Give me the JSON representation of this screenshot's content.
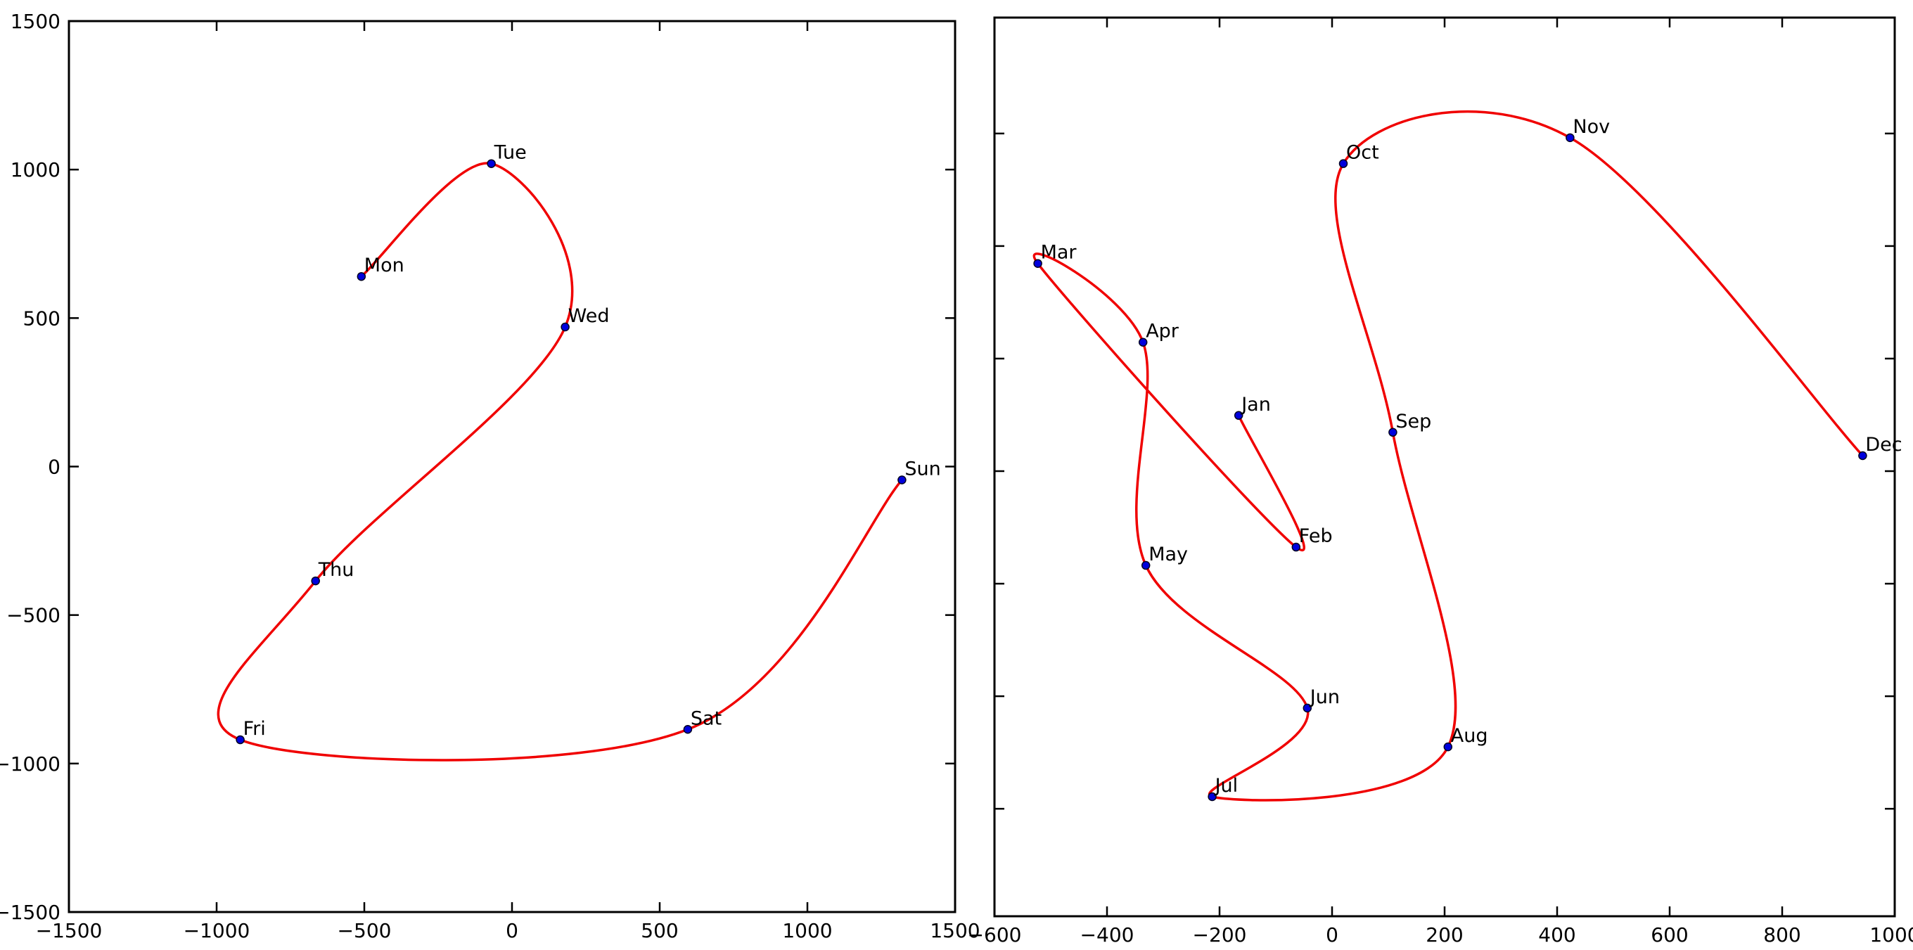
{
  "figure": {
    "background": "#ffffff",
    "description_left": "spline curve through weekday-labeled points shaped like numeral 2",
    "description_right": "spline curve through month-labeled points"
  },
  "chart_data": [
    {
      "type": "scatter",
      "title": "",
      "xlabel": "",
      "ylabel": "",
      "curve": "spline",
      "line_color": "#f00000",
      "marker_color": "#0000dd",
      "marker_edge_color": "#000022",
      "grid": false,
      "legend": "none",
      "xlim": [
        -1500,
        1500
      ],
      "ylim": [
        -1500,
        1500
      ],
      "xticks": [
        -1500,
        -1000,
        -500,
        0,
        500,
        1000,
        1500
      ],
      "xtick_labels": [
        "−1500",
        "−1000",
        "−500",
        "0",
        "500",
        "1000",
        "1500"
      ],
      "yticks": [
        -1500,
        -1000,
        -500,
        0,
        500,
        1000,
        1500
      ],
      "ytick_labels": [
        "−1500",
        "−1000",
        "−500",
        "0",
        "500",
        "1000",
        "1500"
      ],
      "ytick_labels_visible": true,
      "points": [
        {
          "label": "Mon",
          "x": -510,
          "y": 640
        },
        {
          "label": "Tue",
          "x": -70,
          "y": 1020
        },
        {
          "label": "Wed",
          "x": 180,
          "y": 470
        },
        {
          "label": "Thu",
          "x": -665,
          "y": -385
        },
        {
          "label": "Fri",
          "x": -920,
          "y": -920
        },
        {
          "label": "Sat",
          "x": 595,
          "y": -885
        },
        {
          "label": "Sun",
          "x": 1320,
          "y": -45
        }
      ],
      "curve_order": [
        "Mon",
        "Tue",
        "Wed",
        "Thu",
        "Fri",
        "Sat",
        "Sun"
      ]
    },
    {
      "type": "scatter",
      "title": "",
      "xlabel": "",
      "ylabel": "",
      "curve": "spline",
      "line_color": "#f00000",
      "marker_color": "#0000dd",
      "marker_edge_color": "#000022",
      "grid": false,
      "legend": "none",
      "xlim": [
        -600,
        1000
      ],
      "ylim": [
        -1382,
        1812
      ],
      "xticks": [
        -600,
        -400,
        -200,
        0,
        200,
        400,
        600,
        800,
        1000
      ],
      "xtick_labels": [
        "−600",
        "−400",
        "−200",
        "0",
        "200",
        "400",
        "600",
        "800",
        "1000"
      ],
      "yticks": [
        1400,
        1000,
        600,
        200,
        -200,
        -600,
        -1000
      ],
      "ytick_labels": [
        "",
        "",
        "",
        "",
        "",
        "",
        ""
      ],
      "ytick_labels_visible": false,
      "points": [
        {
          "label": "Jan",
          "x": -166,
          "y": 398
        },
        {
          "label": "Feb",
          "x": -64,
          "y": -70
        },
        {
          "label": "Mar",
          "x": -523,
          "y": 938
        },
        {
          "label": "Apr",
          "x": -336,
          "y": 658
        },
        {
          "label": "May",
          "x": -331,
          "y": -135
        },
        {
          "label": "Jun",
          "x": -44,
          "y": -642
        },
        {
          "label": "Jul",
          "x": -213,
          "y": -957
        },
        {
          "label": "Aug",
          "x": 206,
          "y": -780
        },
        {
          "label": "Sep",
          "x": 108,
          "y": 338
        },
        {
          "label": "Oct",
          "x": 20,
          "y": 1293
        },
        {
          "label": "Nov",
          "x": 423,
          "y": 1385
        },
        {
          "label": "Dec",
          "x": 943,
          "y": 255
        }
      ],
      "curve_order": [
        "Jan",
        "Feb",
        "Mar",
        "Apr",
        "May",
        "Jun",
        "Jul",
        "Aug",
        "Sep",
        "Oct",
        "Nov",
        "Dec"
      ]
    }
  ]
}
